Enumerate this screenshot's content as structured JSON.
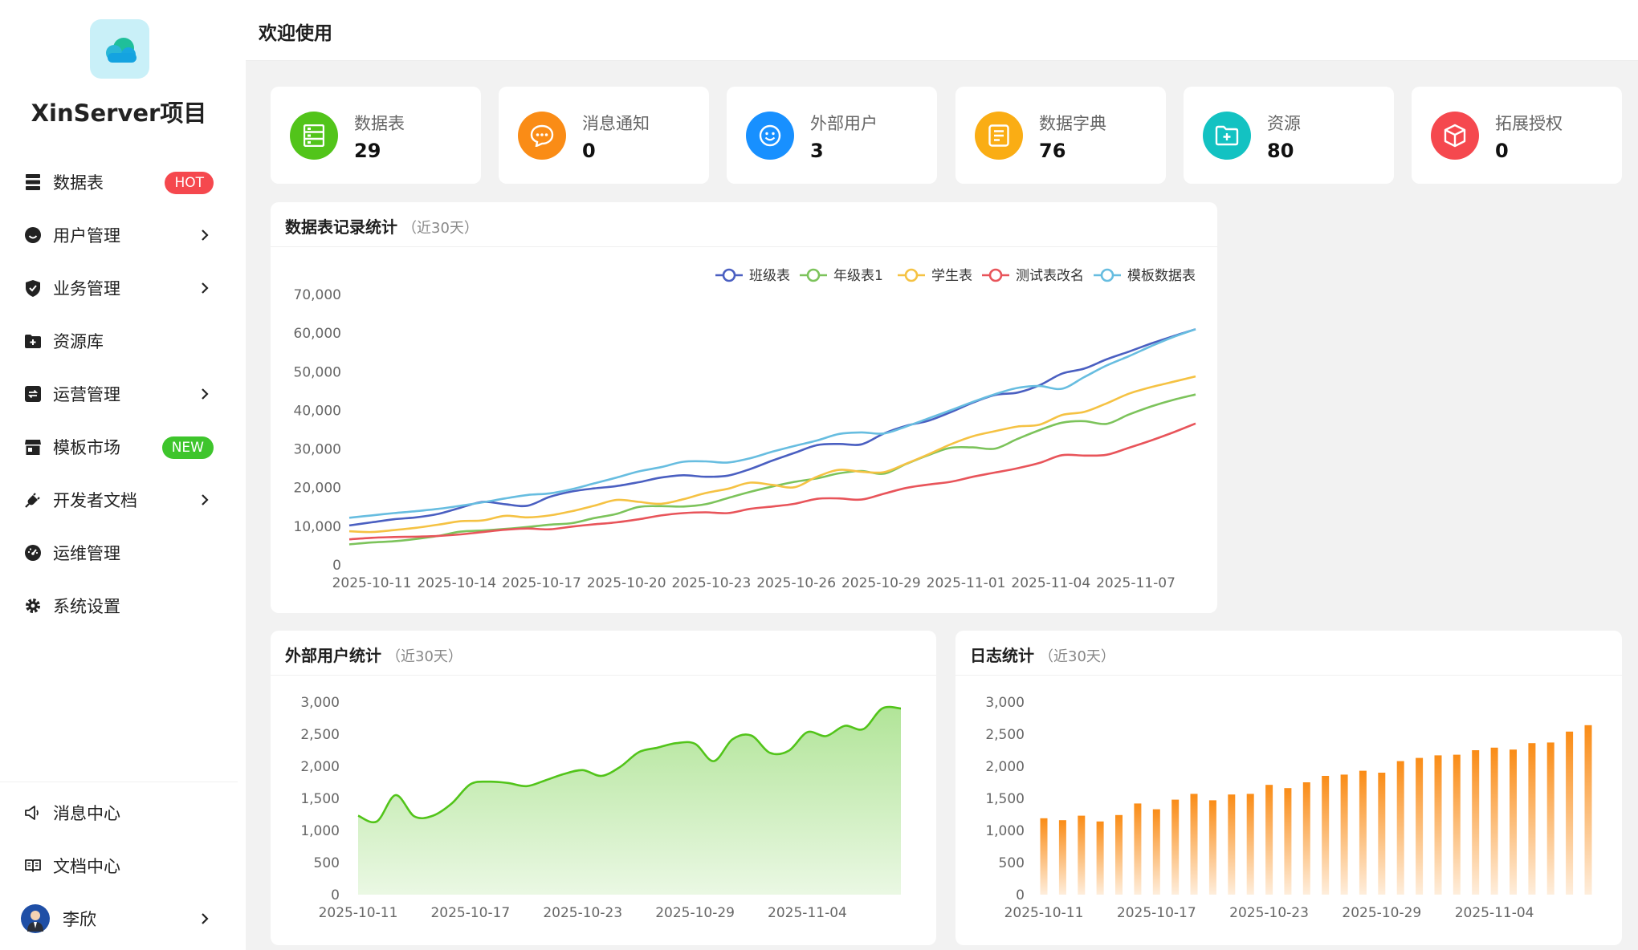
{
  "app": {
    "name": "XinServer项目"
  },
  "sidebar": {
    "items": [
      {
        "label": "数据表",
        "icon": "database-icon",
        "badge": "HOT"
      },
      {
        "label": "用户管理",
        "icon": "user-smile-icon"
      },
      {
        "label": "业务管理",
        "icon": "shield-check-icon"
      },
      {
        "label": "资源库",
        "icon": "folder-add-icon"
      },
      {
        "label": "运营管理",
        "icon": "refresh-square-icon"
      },
      {
        "label": "模板市场",
        "icon": "store-icon",
        "badge": "NEW"
      },
      {
        "label": "开发者文档",
        "icon": "plug-icon"
      },
      {
        "label": "运维管理",
        "icon": "dashboard-icon"
      },
      {
        "label": "系统设置",
        "icon": "gear-icon"
      }
    ],
    "bottom": [
      {
        "label": "消息中心",
        "icon": "megaphone-icon"
      },
      {
        "label": "文档中心",
        "icon": "book-open-icon"
      }
    ],
    "user": {
      "name": "李欣"
    }
  },
  "header": {
    "title": "欢迎使用"
  },
  "stats": [
    {
      "label": "数据表",
      "value": "29",
      "color": "#52c41a",
      "icon": "table-icon"
    },
    {
      "label": "消息通知",
      "value": "0",
      "color": "#fa8c16",
      "icon": "chat-dots-icon"
    },
    {
      "label": "外部用户",
      "value": "3",
      "color": "#1890ff",
      "icon": "smile-icon"
    },
    {
      "label": "数据字典",
      "value": "76",
      "color": "#faad14",
      "icon": "list-icon"
    },
    {
      "label": "资源",
      "value": "80",
      "color": "#13c2c2",
      "icon": "folder-plus-icon"
    },
    {
      "label": "拓展授权",
      "value": "0",
      "color": "#f5484e",
      "icon": "cube-icon"
    }
  ],
  "charts": {
    "records": {
      "title": "数据表记录统计",
      "subtitle": "（近30天）",
      "chart_data": {
        "type": "line",
        "x_ticks": [
          "2025-10-11",
          "2025-10-14",
          "2025-10-17",
          "2025-10-20",
          "2025-10-23",
          "2025-10-26",
          "2025-10-29",
          "2025-11-01",
          "2025-11-04",
          "2025-11-07"
        ],
        "x_range": [
          "2025-10-11",
          "2025-11-09"
        ],
        "ylim": [
          0,
          70000
        ],
        "y_ticks": [
          "70,000",
          "60,000",
          "50,000",
          "40,000",
          "30,000",
          "20,000",
          "10,000",
          "0"
        ],
        "legend_position": "top-right",
        "series": [
          {
            "name": "班级表",
            "color": "#4a5fc1",
            "values": [
              10200,
              11000,
              11800,
              12300,
              13200,
              14800,
              16300,
              15700,
              15300,
              17600,
              19000,
              19800,
              20400,
              21400,
              22600,
              23200,
              22800,
              23100,
              24800,
              27000,
              29000,
              31000,
              31300,
              31200,
              34000,
              36000,
              37300,
              39500,
              42000,
              44000,
              44600,
              46500,
              49500,
              50800,
              53200,
              55200,
              57300,
              59200,
              61000
            ]
          },
          {
            "name": "年级表1",
            "color": "#7cc35b",
            "values": [
              5300,
              5800,
              6100,
              6700,
              7500,
              8600,
              8900,
              9300,
              9800,
              10400,
              10800,
              12100,
              13200,
              15000,
              15200,
              15100,
              15700,
              17300,
              18900,
              20300,
              21500,
              22400,
              23700,
              24300,
              23600,
              26100,
              28400,
              30300,
              30400,
              30100,
              32600,
              34900,
              36800,
              37200,
              36500,
              38900,
              41000,
              42700,
              44100
            ]
          },
          {
            "name": "学生表",
            "color": "#f5c243",
            "values": [
              8700,
              8500,
              9000,
              9600,
              10400,
              11300,
              11500,
              12700,
              12300,
              12800,
              13900,
              15300,
              16800,
              16300,
              15800,
              17000,
              18600,
              19700,
              21300,
              20700,
              20100,
              22800,
              24600,
              24100,
              24000,
              26200,
              28600,
              31200,
              33300,
              34600,
              35800,
              36300,
              38800,
              39600,
              41800,
              44300,
              46000,
              47400,
              48800
            ]
          },
          {
            "name": "测试表改名",
            "color": "#e8545a",
            "values": [
              6600,
              7000,
              7200,
              7300,
              7500,
              7900,
              8500,
              9100,
              9400,
              9200,
              9900,
              10500,
              11000,
              11800,
              12800,
              13400,
              13600,
              13400,
              14500,
              15100,
              15800,
              17100,
              17200,
              16900,
              18400,
              19900,
              20800,
              21500,
              22800,
              23900,
              25000,
              26400,
              28400,
              28300,
              28500,
              30300,
              32200,
              34300,
              36600
            ]
          },
          {
            "name": "模板数据表",
            "color": "#67bde0",
            "values": [
              12200,
              12800,
              13400,
              13900,
              14500,
              15300,
              16200,
              17200,
              18100,
              18500,
              19600,
              21100,
              22600,
              24200,
              25300,
              26700,
              26800,
              26500,
              27600,
              29300,
              30800,
              32200,
              33900,
              34300,
              34000,
              35800,
              37900,
              40000,
              42200,
              44200,
              45800,
              46300,
              45600,
              48600,
              51600,
              54000,
              56600,
              59000,
              61000
            ]
          }
        ]
      }
    },
    "users": {
      "title": "外部用户统计",
      "subtitle": "（近30天）",
      "chart_data": {
        "type": "area",
        "x_ticks": [
          "2025-10-11",
          "2025-10-17",
          "2025-10-23",
          "2025-10-29",
          "2025-11-04"
        ],
        "x_range": [
          "2025-10-11",
          "2025-11-09"
        ],
        "ylim": [
          0,
          3000
        ],
        "y_ticks": [
          "3,000",
          "2,500",
          "2,000",
          "1,500",
          "1,000",
          "500",
          "0"
        ],
        "color": "#52c41a",
        "series": [
          {
            "name": "",
            "values": [
              1230,
              1140,
              1550,
              1220,
              1230,
              1420,
              1720,
              1760,
              1740,
              1690,
              1780,
              1880,
              1940,
              1850,
              1990,
              2220,
              2290,
              2360,
              2350,
              2080,
              2420,
              2480,
              2210,
              2240,
              2530,
              2470,
              2630,
              2580,
              2900,
              2900
            ]
          }
        ]
      }
    },
    "logs": {
      "title": "日志统计",
      "subtitle": "（近30天）",
      "chart_data": {
        "type": "bar",
        "x_ticks": [
          "2025-10-11",
          "2025-10-17",
          "2025-10-23",
          "2025-10-29",
          "2025-11-04"
        ],
        "x_range": [
          "2025-10-11",
          "2025-11-09"
        ],
        "ylim": [
          0,
          3000
        ],
        "y_ticks": [
          "3,000",
          "2,500",
          "2,000",
          "1,500",
          "1,000",
          "500",
          "0"
        ],
        "color": "#fa8c16",
        "series": [
          {
            "name": "",
            "values": [
              1190,
              1160,
              1230,
              1140,
              1240,
              1420,
              1330,
              1480,
              1570,
              1470,
              1560,
              1570,
              1710,
              1660,
              1750,
              1850,
              1870,
              1930,
              1900,
              2080,
              2130,
              2170,
              2180,
              2250,
              2290,
              2260,
              2360,
              2370,
              2540,
              2640
            ]
          }
        ]
      }
    }
  }
}
